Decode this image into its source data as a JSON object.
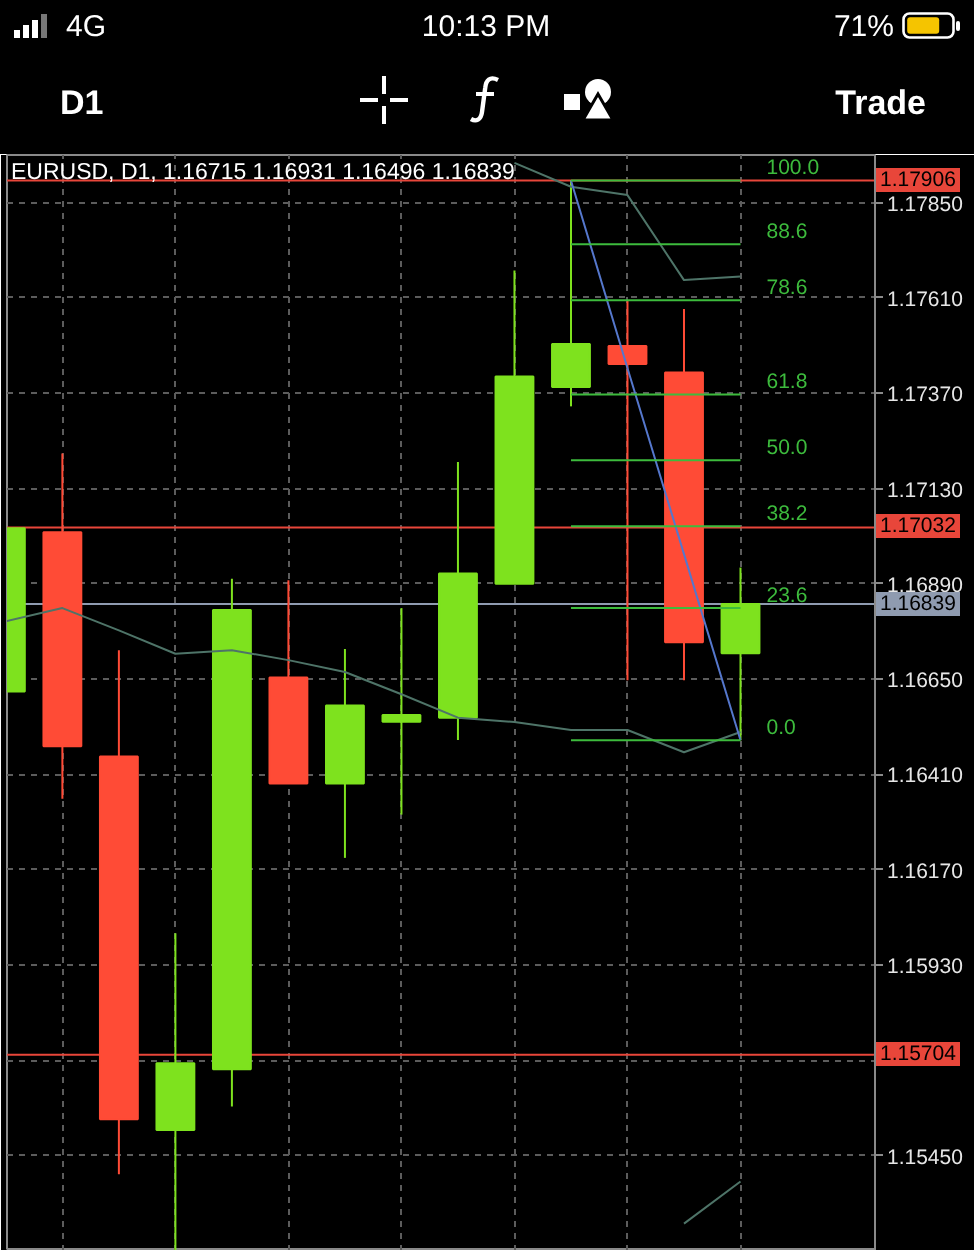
{
  "chart_data": {
    "type": "candlestick",
    "title": "EURUSD, D1, 1.16715 1.16931 1.16496 1.16839",
    "annotations": [
      "4G",
      "10:13 PM",
      "71%",
      "D1",
      "Trade"
    ],
    "categories": [
      null,
      null,
      null,
      null,
      null,
      null,
      null,
      null,
      null,
      null,
      null,
      null,
      null,
      null
    ],
    "ohlc": [
      [
        1.16619,
        1.1703,
        1.16619,
        1.1703
      ],
      [
        1.1702,
        1.17218,
        1.16349,
        1.16481
      ],
      [
        1.16455,
        1.16723,
        1.15403,
        1.15542
      ],
      [
        1.15515,
        1.1601,
        1.1521,
        1.15683
      ],
      [
        1.15668,
        1.16903,
        1.15574,
        1.16824
      ],
      [
        1.16654,
        1.16899,
        1.16387,
        1.16387
      ],
      [
        1.16387,
        1.16726,
        1.162,
        1.16584
      ],
      [
        1.16543,
        1.16829,
        1.16309,
        1.1656
      ],
      [
        1.16553,
        1.17197,
        1.16497,
        1.16916
      ],
      [
        1.1689,
        1.17679,
        1.1689,
        1.17412
      ],
      [
        1.17386,
        1.17906,
        1.17337,
        1.17494
      ],
      [
        1.17489,
        1.17603,
        1.16647,
        1.17444
      ],
      [
        1.17422,
        1.17582,
        1.16647,
        1.16743
      ],
      [
        1.16715,
        1.16931,
        1.16496,
        1.16839
      ]
    ],
    "colors": [
      "#7ee21e",
      "#ff4b36",
      "#ff4b36",
      "#7ee21e",
      "#7ee21e",
      "#ff4b36",
      "#7ee21e",
      "#7ee21e",
      "#7ee21e",
      "#7ee21e",
      "#7ee21e",
      "#ff4b36",
      "#ff4b36",
      "#7ee21e"
    ],
    "series": [
      {
        "type": "line",
        "color": "#4e7468",
        "values": [
          1.16796,
          1.16829,
          1.16773,
          1.16714,
          1.16723,
          1.16698,
          1.16668,
          1.16612,
          1.16553,
          1.16542,
          1.16522,
          1.16522,
          1.16466,
          1.16517
        ]
      },
      {
        "type": "line",
        "color": "#4e7468",
        "values": [
          null,
          null,
          null,
          null,
          null,
          null,
          null,
          null,
          null,
          1.1795,
          1.1789,
          1.17869,
          1.17655,
          1.17664
        ]
      },
      {
        "type": "line",
        "color": "#4e7468",
        "values": [
          null,
          null,
          null,
          null,
          null,
          null,
          null,
          null,
          null,
          null,
          null,
          null,
          1.15279,
          1.15385
        ]
      },
      {
        "type": "line",
        "color": "#5577cc",
        "values": [
          null,
          null,
          null,
          null,
          null,
          null,
          null,
          null,
          null,
          null,
          1.17906,
          1.17433,
          1.16965,
          1.16496
        ]
      },
      {
        "type": "line",
        "name": "100.0",
        "color": "#3dbb3d",
        "values": [
          null,
          null,
          null,
          null,
          null,
          null,
          null,
          null,
          null,
          null,
          1.17906,
          1.17906,
          1.17906,
          1.17906
        ]
      },
      {
        "type": "line",
        "name": "88.6",
        "color": "#3dbb3d",
        "values": [
          null,
          null,
          null,
          null,
          null,
          null,
          null,
          null,
          null,
          null,
          1.17745,
          1.17745,
          1.17745,
          1.17745
        ]
      },
      {
        "type": "line",
        "name": "78.6",
        "color": "#3dbb3d",
        "values": [
          null,
          null,
          null,
          null,
          null,
          null,
          null,
          null,
          null,
          null,
          1.17604,
          1.17604,
          1.17604,
          1.17604
        ]
      },
      {
        "type": "line",
        "name": "61.8",
        "color": "#3dbb3d",
        "values": [
          null,
          null,
          null,
          null,
          null,
          null,
          null,
          null,
          null,
          null,
          1.17367,
          1.17367,
          1.17367,
          1.17367
        ]
      },
      {
        "type": "line",
        "name": "50.0",
        "color": "#3dbb3d",
        "values": [
          null,
          null,
          null,
          null,
          null,
          null,
          null,
          null,
          null,
          null,
          1.17201,
          1.17201,
          1.17201,
          1.17201
        ]
      },
      {
        "type": "line",
        "name": "38.2",
        "color": "#3dbb3d",
        "values": [
          null,
          null,
          null,
          null,
          null,
          null,
          null,
          null,
          null,
          null,
          1.17035,
          1.17035,
          1.17035,
          1.17035
        ]
      },
      {
        "type": "line",
        "name": "23.6",
        "color": "#3dbb3d",
        "values": [
          null,
          null,
          null,
          null,
          null,
          null,
          null,
          null,
          null,
          null,
          1.16829,
          1.16829,
          1.16829,
          1.16829
        ]
      },
      {
        "type": "line",
        "name": "0.0",
        "color": "#3dbb3d",
        "values": [
          null,
          null,
          null,
          null,
          null,
          null,
          null,
          null,
          null,
          null,
          1.16496,
          1.16496,
          1.16496,
          1.16496
        ]
      }
    ],
    "ref_lines": [
      {
        "axis": "y",
        "value": 1.17906,
        "label": "1.17906",
        "color": "#e8463a"
      },
      {
        "axis": "y",
        "value": 1.17032,
        "label": "1.17032",
        "color": "#e8463a"
      },
      {
        "axis": "y",
        "value": 1.15704,
        "label": "1.15704",
        "color": "#e8463a"
      },
      {
        "axis": "y",
        "value": 1.16839,
        "label": "1.16839",
        "color": "#8f9bb0"
      }
    ],
    "ylim": [
      1.1521,
      1.1797
    ],
    "yticks": [
      {
        "value": 1.1785,
        "label": "1.17850"
      },
      {
        "value": 1.1761,
        "label": "1.17610"
      },
      {
        "value": 1.1737,
        "label": "1.17370"
      },
      {
        "value": 1.1713,
        "label": "1.17130"
      },
      {
        "value": 1.1689,
        "label": "1.16890"
      },
      {
        "value": 1.1665,
        "label": "1.16650"
      },
      {
        "value": 1.1641,
        "label": "1.16410"
      },
      {
        "value": 1.1617,
        "label": "1.16170"
      },
      {
        "value": 1.1593,
        "label": "1.15930"
      },
      {
        "value": 1.1569,
        "label": null
      },
      {
        "value": 1.1545,
        "label": "1.15450"
      }
    ],
    "grid": true,
    "tick_labels": "y"
  }
}
